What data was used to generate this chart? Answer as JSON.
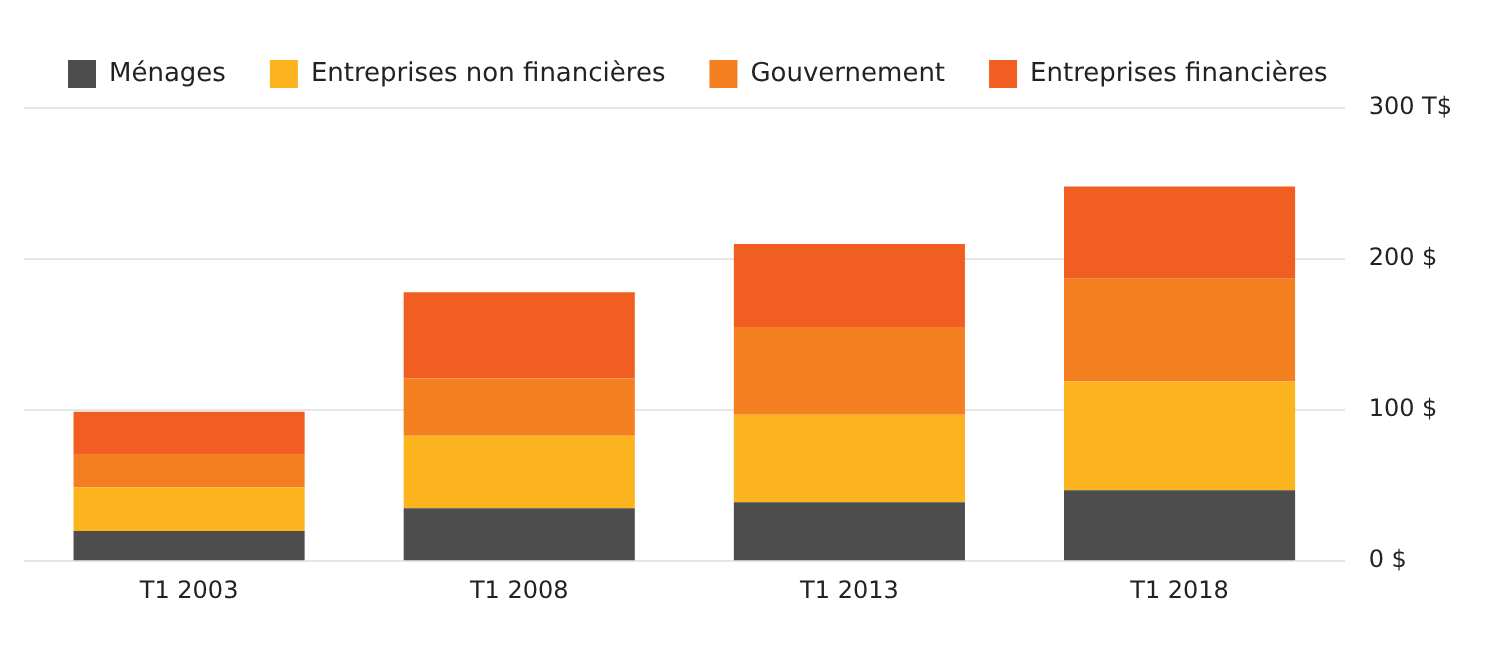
{
  "chart_data": {
    "type": "bar",
    "stacked": true,
    "categories": [
      "T1 2003",
      "T1 2008",
      "T1 2013",
      "T1 2018"
    ],
    "series": [
      {
        "name": "Ménages",
        "color": "#4d4d4d",
        "values": [
          20,
          35,
          39,
          47
        ]
      },
      {
        "name": "Entreprises non financières",
        "color": "#fbb41e",
        "values": [
          29,
          48,
          58,
          72
        ]
      },
      {
        "name": "Gouvernement",
        "color": "#f47f20",
        "values": [
          22,
          38,
          58,
          68
        ]
      },
      {
        "name": "Entreprises financières",
        "color": "#f15e22",
        "values": [
          28,
          57,
          55,
          61
        ]
      }
    ],
    "ylim": [
      0,
      300
    ],
    "yticks": [
      {
        "value": 0,
        "label": "0 $"
      },
      {
        "value": 100,
        "label": "100 $"
      },
      {
        "value": 200,
        "label": "200 $"
      },
      {
        "value": 300,
        "label": "300 T$"
      }
    ],
    "grid": "y",
    "legend": "top left"
  }
}
